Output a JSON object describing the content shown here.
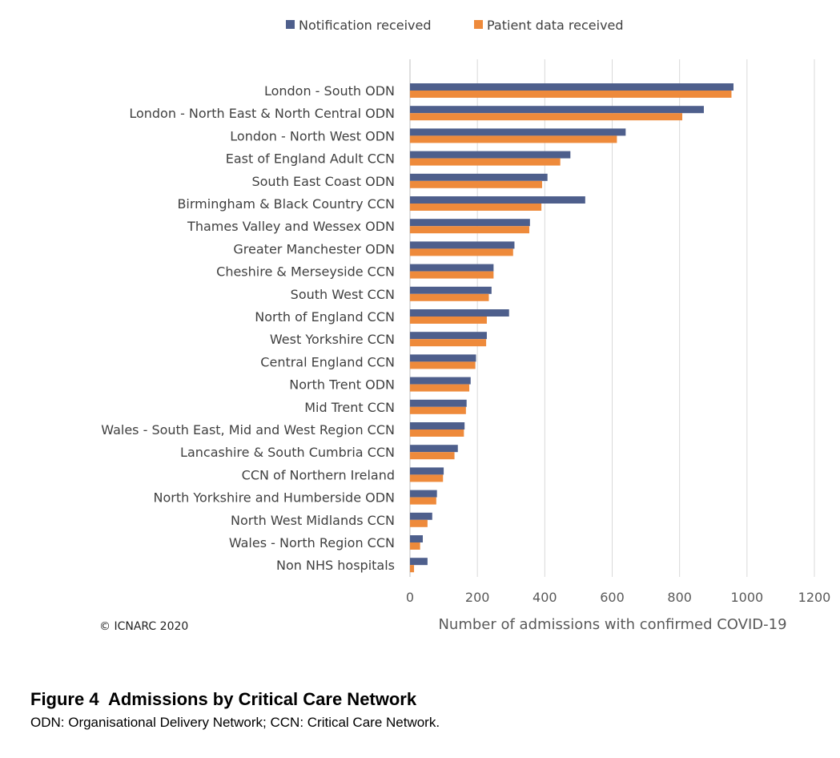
{
  "chart_data": {
    "type": "bar",
    "orientation": "horizontal",
    "categories": [
      "London - South ODN",
      "London - North East & North Central ODN",
      "London - North West ODN",
      "East of England Adult CCN",
      "South East Coast ODN",
      "Birmingham & Black Country CCN",
      "Thames Valley and Wessex ODN",
      "Greater Manchester ODN",
      "Cheshire & Merseyside CCN",
      "South West CCN",
      "North of England CCN",
      "West Yorkshire CCN",
      "Central England CCN",
      "North Trent ODN",
      "Mid Trent CCN",
      "Wales - South East, Mid and West Region CCN",
      "Lancashire & South Cumbria CCN",
      "CCN of Northern Ireland",
      "North Yorkshire and Humberside ODN",
      "North West Midlands CCN",
      "Wales - North Region CCN",
      "Non NHS hospitals"
    ],
    "series": [
      {
        "name": "Notification received",
        "color": "#4e5f8c",
        "values": [
          960,
          872,
          640,
          476,
          408,
          520,
          356,
          310,
          248,
          242,
          294,
          228,
          196,
          180,
          168,
          162,
          142,
          100,
          80,
          66,
          38,
          52
        ]
      },
      {
        "name": "Patient data received",
        "color": "#ee8a3b",
        "values": [
          954,
          808,
          614,
          446,
          392,
          390,
          354,
          306,
          248,
          234,
          228,
          226,
          194,
          176,
          166,
          160,
          132,
          98,
          78,
          52,
          30,
          12
        ]
      }
    ],
    "xlabel": "Number of admissions with confirmed COVID-19",
    "ylabel": "",
    "xlim": [
      0,
      1200
    ],
    "xticks": [
      0,
      200,
      400,
      600,
      800,
      1000,
      1200
    ],
    "grid": true,
    "legend": "top-center"
  },
  "copyright": "© ICNARC 2020",
  "figure": {
    "title": "Figure 4  Admissions by Critical Care Network",
    "caption": "ODN: Organisational Delivery Network; CCN: Critical Care Network."
  }
}
